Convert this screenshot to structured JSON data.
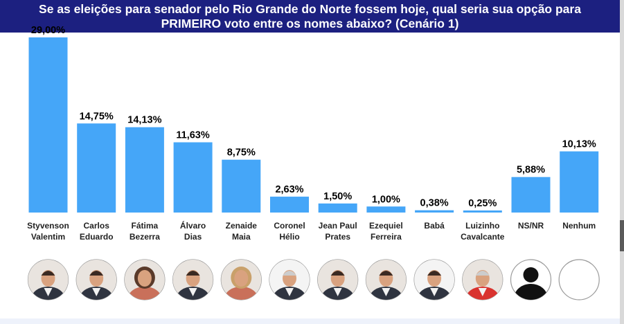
{
  "header": {
    "line1": "Se as eleições para senador pelo Rio Grande do Norte fossem hoje, qual seria sua opção para",
    "line2": "PRIMEIRO voto entre os nomes abaixo? (Cenário 1)"
  },
  "chart_data": {
    "type": "bar",
    "title": "Se as eleições para senador pelo Rio Grande do Norte fossem hoje, qual seria sua opção para PRIMEIRO voto entre os nomes abaixo? (Cenário 1)",
    "categories": [
      [
        "Styvenson",
        "Valentim"
      ],
      [
        "Carlos",
        "Eduardo"
      ],
      [
        "Fátima",
        "Bezerra"
      ],
      [
        "Álvaro",
        "Dias"
      ],
      [
        "Zenaide",
        "Maia"
      ],
      [
        "Coronel",
        "Hélio"
      ],
      [
        "Jean Paul",
        "Prates"
      ],
      [
        "Ezequiel",
        "Ferreira"
      ],
      [
        "Babá"
      ],
      [
        "Luizinho",
        "Cavalcante"
      ],
      [
        "NS/NR"
      ],
      [
        "Nenhum"
      ]
    ],
    "values": [
      29.0,
      14.75,
      14.13,
      11.63,
      8.75,
      2.63,
      1.5,
      1.0,
      0.38,
      0.25,
      5.88,
      10.13
    ],
    "value_labels": [
      "29,00%",
      "14,75%",
      "14,13%",
      "11,63%",
      "8,75%",
      "2,63%",
      "1,50%",
      "1,00%",
      "0,38%",
      "0,25%",
      "5,88%",
      "10,13%"
    ],
    "ylim": [
      0,
      29
    ],
    "grid": false,
    "bar_color": "#45a6f8",
    "avatar_icons": [
      "man-suit-photo",
      "man-suit-photo",
      "woman-photo",
      "man-glasses-photo",
      "woman-photo",
      "man-photo",
      "man-beard-photo",
      "man-suit-photo",
      "man-photo",
      "man-photo",
      "silhouette-icon",
      "empty-circle"
    ]
  }
}
